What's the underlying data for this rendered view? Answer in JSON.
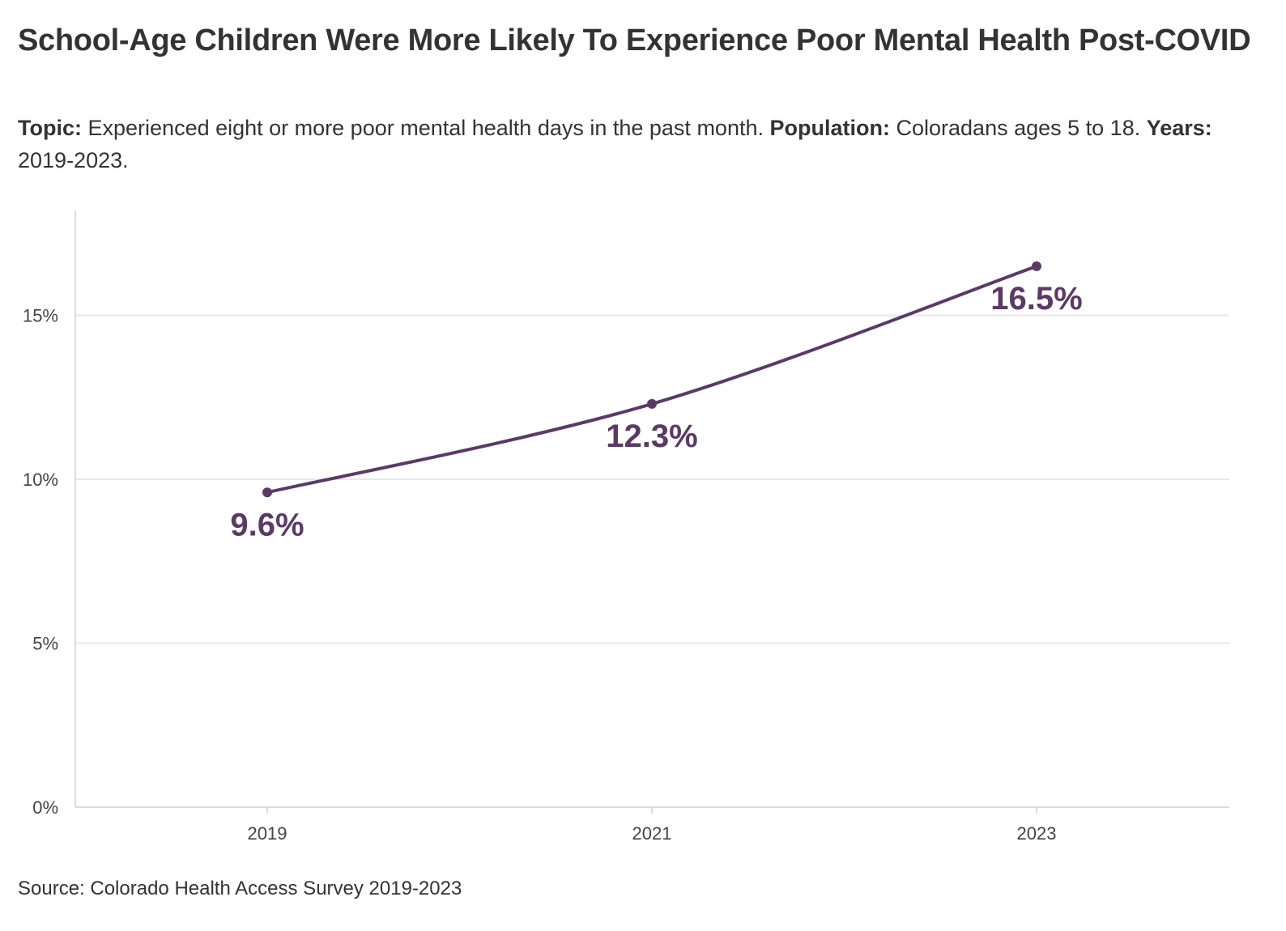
{
  "title": "School-Age Children Were More Likely To Experience Poor Mental Health Post-COVID",
  "subtitle": {
    "topic_label": "Topic:",
    "topic_text": "Experienced eight or more poor mental health days in the past month.",
    "population_label": "Population:",
    "population_text": "Coloradans ages 5 to 18.",
    "years_label": "Years:",
    "years_text": "2019-2023."
  },
  "source": "Source: Colorado Health Access Survey 2019-2023",
  "colors": {
    "line": "#5b3a66",
    "grid": "#e8e8e8",
    "axis": "#dddddd"
  },
  "chart_data": {
    "type": "line",
    "x": [
      "2019",
      "2021",
      "2023"
    ],
    "series": [
      {
        "values": [
          9.6,
          12.3,
          16.5
        ],
        "labels": [
          "9.6%",
          "12.3%",
          "16.5%"
        ]
      }
    ],
    "y_ticks": [
      0,
      5,
      10,
      15
    ],
    "y_tick_labels": [
      "0%",
      "5%",
      "10%",
      "15%"
    ],
    "ylim": [
      0,
      18.2
    ],
    "grid": true,
    "legend": "none",
    "xlabel": "",
    "ylabel": ""
  }
}
